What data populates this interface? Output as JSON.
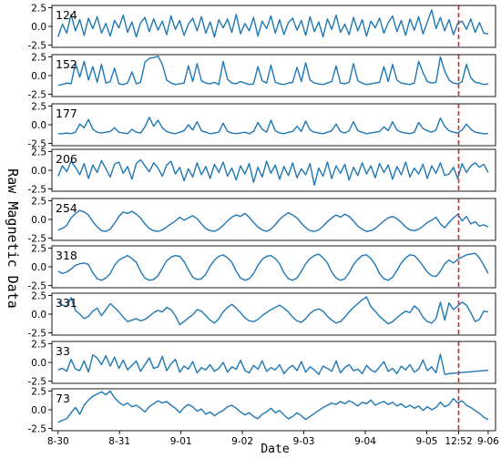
{
  "chart_data": {
    "type": "line",
    "xlabel": "Date",
    "ylabel": "Raw Magnetic Data",
    "x_ticks": [
      "8-30",
      "8-31",
      "9-01",
      "9-02",
      "9-03",
      "9-04",
      "9-05",
      "12:52",
      "9-06"
    ],
    "x_tick_positions_days": [
      0,
      1,
      2,
      3,
      4,
      5,
      6,
      6.52,
      7
    ],
    "x_range_days": [
      -0.1,
      7.12
    ],
    "ylim": [
      -2.8,
      2.8
    ],
    "y_ticks": [
      "2.5",
      "0.0",
      "-2.5"
    ],
    "y_tick_values": [
      2.5,
      0.0,
      -2.5
    ],
    "marker": {
      "label": "12:52",
      "x_days": 6.52,
      "style": "dashed",
      "color": "#d62728"
    },
    "line_color": "#1f77b4",
    "panels": [
      {
        "id": "124",
        "x_start_days": 0,
        "x_end_days": 7,
        "values": [
          -1.4,
          0.3,
          -0.9,
          1.6,
          -0.6,
          0.9,
          -1.2,
          1.1,
          -0.3,
          1.3,
          -0.9,
          0.4,
          -1.3,
          0.8,
          -0.2,
          1.5,
          -0.8,
          0.6,
          -1.4,
          0.5,
          1.2,
          -0.7,
          1.0,
          -0.5,
          0.7,
          -1.1,
          1.4,
          -0.4,
          0.8,
          -1.2,
          0.3,
          1.1,
          -0.6,
          1.3,
          -0.9,
          0.6,
          -1.4,
          0.9,
          -0.2,
          1.0,
          -0.8,
          1.6,
          -1.0,
          0.4,
          -0.6,
          1.2,
          -1.3,
          0.7,
          -0.3,
          1.4,
          -0.9,
          0.9,
          -1.1,
          0.5,
          1.1,
          -0.5,
          0.8,
          -1.2,
          1.3,
          -0.7,
          0.6,
          -1.4,
          1.0,
          -0.4,
          1.5,
          -0.8,
          0.3,
          -1.1,
          1.2,
          -0.6,
          0.9,
          -1.3,
          0.7,
          -0.2,
          1.1,
          -0.9,
          0.5,
          1.4,
          -0.7,
          0.8,
          -1.2,
          1.0,
          -0.5,
          1.3,
          -1.0,
          0.6,
          2.2,
          -0.3,
          1.2,
          -0.6,
          0.9,
          -1.1,
          0.4,
          0.7,
          -0.4,
          1.0,
          -0.8,
          0.5,
          -0.9,
          -1.0
        ]
      },
      {
        "id": "152",
        "x_start_days": 0,
        "x_end_days": 7,
        "values": [
          -1.3,
          -1.2,
          -1.0,
          -1.1,
          1.6,
          -0.2,
          1.9,
          -0.6,
          1.2,
          -0.9,
          1.5,
          -1.0,
          -0.8,
          1.0,
          -1.1,
          -1.2,
          -1.0,
          0.5,
          -1.1,
          -0.9,
          1.8,
          2.3,
          2.4,
          2.6,
          1.5,
          -0.6,
          -1.0,
          -1.2,
          -1.1,
          -1.0,
          1.3,
          -0.8,
          1.6,
          -0.7,
          -1.0,
          -1.1,
          -0.9,
          -1.2,
          1.9,
          -0.5,
          -1.0,
          -1.1,
          -0.8,
          -1.0,
          -1.2,
          -1.1,
          1.2,
          -0.7,
          -1.0,
          1.4,
          -0.9,
          -1.1,
          -1.2,
          -1.0,
          -0.9,
          1.1,
          -0.8,
          1.7,
          -0.6,
          -1.0,
          -1.1,
          -1.2,
          -1.0,
          -0.8,
          1.3,
          -1.0,
          -1.1,
          -0.9,
          1.6,
          -0.7,
          -1.0,
          -1.2,
          -1.1,
          -1.0,
          -0.9,
          1.2,
          -0.8,
          1.5,
          -0.6,
          -1.0,
          -1.1,
          -1.2,
          -1.0,
          1.9,
          0.4,
          -0.8,
          -1.0,
          -0.9,
          2.5,
          0.6,
          -0.6,
          -1.0,
          -1.1,
          -0.8,
          1.5,
          -0.3,
          -0.9,
          -1.0,
          -1.2,
          -1.1
        ]
      },
      {
        "id": "177",
        "x_start_days": 0,
        "x_end_days": 7,
        "values": [
          -1.2,
          -1.2,
          -1.1,
          -1.2,
          -1.0,
          0.1,
          -0.4,
          0.7,
          -0.6,
          -1.0,
          -1.1,
          -1.0,
          -0.9,
          -0.4,
          -1.0,
          -1.1,
          -1.2,
          -0.6,
          -1.0,
          -1.1,
          -0.3,
          1.0,
          -0.2,
          0.6,
          -0.4,
          -0.9,
          -1.1,
          -1.2,
          -1.0,
          -0.8,
          0.0,
          -0.7,
          0.4,
          -0.8,
          -1.0,
          -1.2,
          -1.1,
          -1.0,
          0.2,
          -0.9,
          -1.1,
          -1.2,
          -1.1,
          -1.0,
          -1.2,
          -0.9,
          0.3,
          -0.6,
          -1.0,
          0.6,
          -0.8,
          -1.1,
          -1.2,
          -1.0,
          -0.9,
          -0.2,
          -0.9,
          0.5,
          -0.7,
          -1.0,
          -1.1,
          -1.2,
          -1.0,
          -0.8,
          0.1,
          -0.9,
          -1.1,
          -0.8,
          0.4,
          -0.8,
          -1.0,
          -1.2,
          -1.1,
          -1.0,
          -0.9,
          -0.3,
          -0.8,
          0.4,
          -0.7,
          -1.0,
          -1.1,
          -1.2,
          -1.0,
          0.3,
          -0.5,
          -0.8,
          -1.0,
          -0.7,
          0.9,
          -0.2,
          -0.8,
          -1.0,
          -1.1,
          -0.7,
          0.1,
          -0.6,
          -1.0,
          -1.1,
          -1.2,
          -1.2
        ]
      },
      {
        "id": "206",
        "x_start_days": 0,
        "x_end_days": 7,
        "values": [
          -0.8,
          0.6,
          -0.2,
          1.2,
          0.4,
          -0.6,
          0.9,
          -1.1,
          0.7,
          -0.3,
          1.3,
          0.2,
          -0.9,
          0.8,
          1.1,
          -0.4,
          0.5,
          -1.2,
          0.9,
          1.4,
          0.6,
          -0.2,
          1.0,
          0.3,
          -0.8,
          0.7,
          1.2,
          -0.5,
          0.4,
          -1.4,
          0.2,
          -0.9,
          1.0,
          -0.6,
          0.5,
          -1.1,
          0.8,
          -0.3,
          1.1,
          -0.8,
          0.3,
          -1.3,
          0.6,
          -0.5,
          0.9,
          -1.6,
          0.4,
          -0.9,
          1.2,
          -0.4,
          0.7,
          -1.2,
          0.5,
          -0.7,
          1.0,
          -1.0,
          0.2,
          -0.6,
          0.9,
          -2.0,
          0.3,
          -0.8,
          1.1,
          -1.1,
          0.6,
          -0.4,
          0.8,
          -1.3,
          0.4,
          -0.7,
          1.0,
          -0.5,
          0.6,
          -1.0,
          0.9,
          -0.3,
          0.7,
          -1.2,
          0.5,
          -0.6,
          1.1,
          -0.9,
          0.3,
          -0.5,
          0.8,
          -1.1,
          0.6,
          -0.4,
          1.0,
          -0.7,
          -0.5,
          0.4,
          -1.1,
          0.9,
          -0.3,
          0.6,
          1.0,
          0.4,
          0.8,
          -0.3
        ]
      },
      {
        "id": "254",
        "x_start_days": 0,
        "x_end_days": 7,
        "values": [
          -1.4,
          -1.2,
          -0.8,
          0.2,
          0.8,
          1.2,
          1.0,
          0.6,
          -0.3,
          -1.0,
          -1.5,
          -1.6,
          -1.3,
          -0.5,
          0.4,
          1.0,
          0.8,
          1.1,
          0.7,
          0.2,
          -0.6,
          -1.2,
          -1.5,
          -1.6,
          -1.4,
          -1.0,
          -0.6,
          -0.2,
          0.3,
          -0.1,
          0.2,
          0.5,
          0.1,
          -0.6,
          -1.2,
          -1.5,
          -1.6,
          -1.3,
          -0.8,
          -0.2,
          0.3,
          0.6,
          0.4,
          0.8,
          0.3,
          -0.4,
          -1.0,
          -1.4,
          -1.6,
          -1.3,
          -0.7,
          0.0,
          0.5,
          0.9,
          0.6,
          0.2,
          -0.5,
          -1.1,
          -1.5,
          -1.6,
          -1.4,
          -0.9,
          -0.3,
          0.2,
          0.6,
          0.3,
          0.7,
          0.4,
          -0.2,
          -0.9,
          -1.3,
          -1.6,
          -1.5,
          -1.2,
          -0.7,
          -0.2,
          0.2,
          0.4,
          0.1,
          -0.4,
          -1.0,
          -1.4,
          -1.5,
          -1.3,
          -0.9,
          -0.4,
          -0.1,
          0.3,
          -0.6,
          -1.1,
          -0.4,
          0.2,
          0.7,
          -0.2,
          0.4,
          -0.6,
          -0.3,
          -0.9,
          -0.7,
          -1.0
        ]
      },
      {
        "id": "318",
        "x_start_days": 0,
        "x_end_days": 7,
        "values": [
          -0.6,
          -0.9,
          -0.7,
          -0.3,
          0.2,
          0.4,
          0.5,
          0.3,
          -0.8,
          -1.6,
          -1.8,
          -1.5,
          -0.9,
          0.2,
          0.9,
          1.2,
          1.5,
          1.1,
          0.6,
          -0.6,
          -1.5,
          -1.8,
          -1.7,
          -1.2,
          -0.2,
          0.8,
          1.3,
          1.5,
          1.4,
          0.7,
          -0.4,
          -1.4,
          -1.7,
          -1.6,
          -1.0,
          0.1,
          0.9,
          1.4,
          1.6,
          1.2,
          0.6,
          -0.6,
          -1.5,
          -1.8,
          -1.6,
          -0.9,
          0.2,
          1.0,
          1.4,
          1.5,
          1.1,
          0.4,
          -0.8,
          -1.6,
          -1.8,
          -1.5,
          -0.6,
          0.4,
          1.1,
          1.5,
          1.7,
          1.2,
          0.5,
          -0.7,
          -1.5,
          -1.8,
          -1.6,
          -0.8,
          0.3,
          1.0,
          1.5,
          1.6,
          1.1,
          0.3,
          -0.9,
          -1.6,
          -1.8,
          -1.4,
          -0.5,
          0.5,
          1.2,
          1.6,
          1.5,
          0.9,
          0.1,
          -0.7,
          -1.2,
          -1.3,
          -0.6,
          0.4,
          0.9,
          0.5,
          1.0,
          1.3,
          1.6,
          1.7,
          1.8,
          1.2,
          0.2,
          -0.9
        ]
      },
      {
        "id": "331",
        "x_start_days": 0,
        "x_end_days": 7,
        "values": [
          1.6,
          1.2,
          1.0,
          2.2,
          0.5,
          0.0,
          -0.6,
          -0.3,
          0.4,
          0.8,
          -0.2,
          0.6,
          1.4,
          0.9,
          0.3,
          -0.4,
          -1.0,
          -0.8,
          -0.6,
          -0.9,
          -0.7,
          -0.3,
          0.2,
          0.5,
          0.3,
          0.9,
          0.6,
          -0.2,
          -1.4,
          -1.0,
          -0.5,
          -0.1,
          0.6,
          0.4,
          -0.2,
          -0.8,
          -1.2,
          -0.6,
          0.3,
          0.9,
          1.3,
          0.8,
          0.2,
          -0.5,
          -0.9,
          -1.0,
          -0.7,
          -0.2,
          0.2,
          0.6,
          0.9,
          1.2,
          0.8,
          0.3,
          -0.4,
          -0.9,
          -1.1,
          -0.6,
          0.1,
          0.5,
          0.7,
          0.4,
          -0.3,
          -0.8,
          -1.2,
          -1.0,
          -0.4,
          0.3,
          0.9,
          1.4,
          1.9,
          2.3,
          1.0,
          0.4,
          -0.3,
          -0.8,
          -1.3,
          -1.0,
          -0.5,
          0.0,
          0.4,
          0.2,
          1.1,
          0.6,
          -0.4,
          -1.0,
          -1.2,
          -0.6,
          1.6,
          -0.8,
          1.5,
          0.6,
          1.1,
          1.6,
          1.2,
          0.2,
          -1.0,
          -0.7,
          0.4,
          0.3
        ]
      },
      {
        "id": "33",
        "x_start_days": 0,
        "x_end_days": 7,
        "values": [
          -1.0,
          -0.8,
          -1.2,
          0.4,
          -0.9,
          -1.1,
          0.2,
          -1.3,
          1.0,
          0.6,
          -0.3,
          0.9,
          -0.5,
          0.7,
          -0.8,
          0.3,
          -1.0,
          -0.4,
          0.2,
          -1.2,
          -0.3,
          0.6,
          -0.8,
          -0.6,
          0.8,
          -1.1,
          -0.2,
          0.4,
          -1.3,
          -0.5,
          -0.9,
          0.1,
          -1.4,
          -0.7,
          -1.0,
          -0.3,
          -1.2,
          -0.8,
          0.0,
          -1.3,
          -0.6,
          -0.9,
          0.3,
          -1.1,
          -1.4,
          -0.4,
          -0.9,
          0.2,
          -1.2,
          -0.7,
          -1.0,
          -0.3,
          -1.5,
          -0.8,
          -0.4,
          -1.1,
          0.1,
          -1.3,
          -0.6,
          -1.0,
          -1.6,
          -0.5,
          -0.8,
          -1.2,
          0.2,
          -1.4,
          -0.7,
          -0.3,
          -1.1,
          -0.9,
          -1.5,
          -0.4,
          -1.0,
          -1.3,
          -0.6,
          0.1,
          -1.2,
          -0.8,
          -1.5,
          -0.5,
          -1.0,
          -0.3,
          -1.3,
          -0.9,
          0.3,
          -1.1,
          -0.6,
          -1.4,
          1.1,
          -1.6,
          -1.5,
          -1.45,
          -1.4,
          -1.35,
          -1.3,
          -1.25,
          -1.2,
          -1.15,
          -1.1,
          -1.05
        ]
      },
      {
        "id": "73",
        "x_start_days": 0,
        "x_end_days": 7,
        "values": [
          -1.7,
          -1.4,
          -1.2,
          -0.4,
          0.3,
          -0.6,
          0.6,
          1.3,
          1.8,
          2.1,
          2.4,
          2.0,
          2.5,
          1.6,
          1.0,
          0.6,
          0.9,
          0.4,
          0.6,
          0.2,
          -0.3,
          0.4,
          0.8,
          1.2,
          0.9,
          1.1,
          0.6,
          0.2,
          -0.4,
          0.3,
          0.7,
          0.4,
          -0.2,
          0.1,
          -0.6,
          -0.3,
          -0.8,
          -0.4,
          -0.1,
          0.4,
          0.6,
          0.2,
          -0.3,
          -0.7,
          -0.4,
          -0.9,
          -1.2,
          -0.6,
          -0.3,
          0.2,
          -0.4,
          -0.1,
          -0.7,
          -1.2,
          -0.9,
          -0.4,
          -0.8,
          -1.3,
          -0.9,
          -0.5,
          -0.1,
          0.3,
          0.6,
          0.9,
          0.7,
          1.1,
          0.8,
          1.2,
          0.9,
          0.5,
          1.0,
          0.8,
          1.3,
          0.6,
          0.9,
          1.1,
          0.7,
          1.0,
          0.5,
          0.8,
          0.3,
          0.6,
          0.2,
          0.5,
          -0.1,
          0.4,
          0.0,
          0.3,
          1.0,
          0.4,
          0.7,
          1.5,
          0.9,
          1.2,
          0.6,
          0.3,
          -0.1,
          -0.5,
          -1.0,
          -1.3
        ]
      }
    ]
  }
}
